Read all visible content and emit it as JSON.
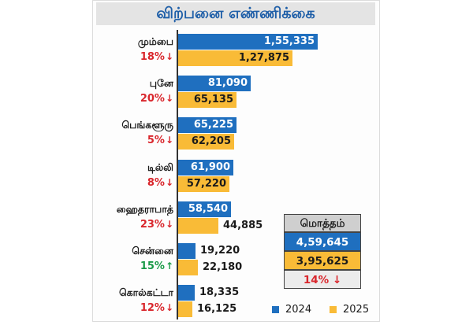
{
  "chart_data": {
    "type": "bar",
    "orientation": "horizontal",
    "title": "விற்பனை எண்ணிக்கை",
    "categories": [
      "மும்பை",
      "புனே",
      "பெங்களூரு",
      "டில்லி",
      "ஹைதராபாத்",
      "சென்னை",
      "கொல்கட்டா"
    ],
    "series": [
      {
        "name": "2024",
        "color": "#1f6fbf",
        "values": [
          155335,
          81090,
          65225,
          61900,
          58540,
          19220,
          18335
        ],
        "labels": [
          "1,55,335",
          "81,090",
          "65,225",
          "61,900",
          "58,540",
          "19,220",
          "18,335"
        ]
      },
      {
        "name": "2025",
        "color": "#f9bb37",
        "values": [
          127875,
          65135,
          62205,
          57220,
          44885,
          22180,
          16125
        ],
        "labels": [
          "1,27,875",
          "65,135",
          "62,205",
          "57,220",
          "44,885",
          "22,180",
          "16,125"
        ]
      }
    ],
    "changes": [
      {
        "text": "18%",
        "direction": "down"
      },
      {
        "text": "20%",
        "direction": "down"
      },
      {
        "text": "5%",
        "direction": "down"
      },
      {
        "text": "8%",
        "direction": "down"
      },
      {
        "text": "23%",
        "direction": "down"
      },
      {
        "text": "15%",
        "direction": "up"
      },
      {
        "text": "12%",
        "direction": "down"
      }
    ],
    "total": {
      "label": "மொத்தம்",
      "value_2024": "4,59,645",
      "value_2025": "3,95,625",
      "change": "14%",
      "direction": "down"
    },
    "legend": [
      "2024",
      "2025"
    ]
  },
  "colors": {
    "blue": "#1f6fbf",
    "yellow": "#f9bb37",
    "down": "#d9262c",
    "up": "#1a9a47"
  },
  "arrows": {
    "down": "🡓",
    "up": "🡑"
  }
}
